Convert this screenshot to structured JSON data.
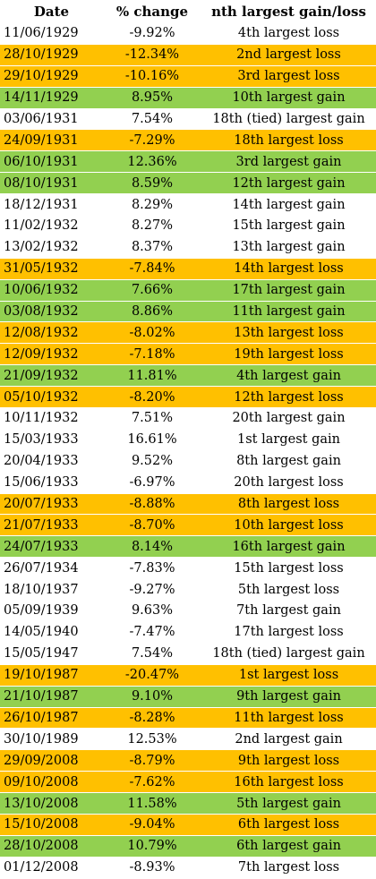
{
  "headers": {
    "date": "Date",
    "change": "% change",
    "rank": "nth largest gain/loss"
  },
  "colors": {
    "loss": "#ffc000",
    "gain": "#92d050",
    "none": "#ffffff"
  },
  "rows": [
    {
      "date": "11/06/1929",
      "change": "-9.92%",
      "rank": "4th largest loss",
      "hl": "none"
    },
    {
      "date": "28/10/1929",
      "change": "-12.34%",
      "rank": "2nd largest loss",
      "hl": "loss"
    },
    {
      "date": "29/10/1929",
      "change": "-10.16%",
      "rank": "3rd largest loss",
      "hl": "loss"
    },
    {
      "date": "14/11/1929",
      "change": "8.95%",
      "rank": "10th largest gain",
      "hl": "gain"
    },
    {
      "date": "03/06/1931",
      "change": "7.54%",
      "rank": "18th (tied) largest gain",
      "hl": "none"
    },
    {
      "date": "24/09/1931",
      "change": "-7.29%",
      "rank": "18th largest loss",
      "hl": "loss"
    },
    {
      "date": "06/10/1931",
      "change": "12.36%",
      "rank": "3rd largest gain",
      "hl": "gain"
    },
    {
      "date": "08/10/1931",
      "change": "8.59%",
      "rank": "12th largest gain",
      "hl": "gain"
    },
    {
      "date": "18/12/1931",
      "change": "8.29%",
      "rank": "14th largest gain",
      "hl": "none"
    },
    {
      "date": "11/02/1932",
      "change": "8.27%",
      "rank": "15th largest gain",
      "hl": "none"
    },
    {
      "date": "13/02/1932",
      "change": "8.37%",
      "rank": "13th largest gain",
      "hl": "none"
    },
    {
      "date": "31/05/1932",
      "change": "-7.84%",
      "rank": "14th largest loss",
      "hl": "loss"
    },
    {
      "date": "10/06/1932",
      "change": "7.66%",
      "rank": "17th largest gain",
      "hl": "gain"
    },
    {
      "date": "03/08/1932",
      "change": "8.86%",
      "rank": "11th largest gain",
      "hl": "gain"
    },
    {
      "date": "12/08/1932",
      "change": "-8.02%",
      "rank": "13th largest loss",
      "hl": "loss"
    },
    {
      "date": "12/09/1932",
      "change": "-7.18%",
      "rank": "19th largest loss",
      "hl": "loss"
    },
    {
      "date": "21/09/1932",
      "change": "11.81%",
      "rank": "4th largest gain",
      "hl": "gain"
    },
    {
      "date": "05/10/1932",
      "change": "-8.20%",
      "rank": "12th largest loss",
      "hl": "loss"
    },
    {
      "date": "10/11/1932",
      "change": "7.51%",
      "rank": "20th largest gain",
      "hl": "none"
    },
    {
      "date": "15/03/1933",
      "change": "16.61%",
      "rank": "1st largest gain",
      "hl": "none"
    },
    {
      "date": "20/04/1933",
      "change": "9.52%",
      "rank": "8th largest gain",
      "hl": "none"
    },
    {
      "date": "15/06/1933",
      "change": "-6.97%",
      "rank": "20th largest loss",
      "hl": "none"
    },
    {
      "date": "20/07/1933",
      "change": "-8.88%",
      "rank": "8th largest loss",
      "hl": "loss"
    },
    {
      "date": "21/07/1933",
      "change": "-8.70%",
      "rank": "10th largest loss",
      "hl": "loss"
    },
    {
      "date": "24/07/1933",
      "change": "8.14%",
      "rank": "16th largest gain",
      "hl": "gain"
    },
    {
      "date": "26/07/1934",
      "change": "-7.83%",
      "rank": "15th largest loss",
      "hl": "none"
    },
    {
      "date": "18/10/1937",
      "change": "-9.27%",
      "rank": "5th largest loss",
      "hl": "none"
    },
    {
      "date": "05/09/1939",
      "change": "9.63%",
      "rank": "7th largest gain",
      "hl": "none"
    },
    {
      "date": "14/05/1940",
      "change": "-7.47%",
      "rank": "17th largest loss",
      "hl": "none"
    },
    {
      "date": "15/05/1947",
      "change": "7.54%",
      "rank": "18th (tied) largest gain",
      "hl": "none"
    },
    {
      "date": "19/10/1987",
      "change": "-20.47%",
      "rank": "1st largest loss",
      "hl": "loss"
    },
    {
      "date": "21/10/1987",
      "change": "9.10%",
      "rank": "9th largest gain",
      "hl": "gain"
    },
    {
      "date": "26/10/1987",
      "change": "-8.28%",
      "rank": "11th largest loss",
      "hl": "loss"
    },
    {
      "date": "30/10/1989",
      "change": "12.53%",
      "rank": "2nd largest gain",
      "hl": "none"
    },
    {
      "date": "29/09/2008",
      "change": "-8.79%",
      "rank": "9th largest loss",
      "hl": "loss"
    },
    {
      "date": "09/10/2008",
      "change": "-7.62%",
      "rank": "16th largest loss",
      "hl": "loss"
    },
    {
      "date": "13/10/2008",
      "change": "11.58%",
      "rank": "5th largest gain",
      "hl": "gain"
    },
    {
      "date": "15/10/2008",
      "change": "-9.04%",
      "rank": "6th largest loss",
      "hl": "loss"
    },
    {
      "date": "28/10/2008",
      "change": "10.79%",
      "rank": "6th largest gain",
      "hl": "gain"
    },
    {
      "date": "01/12/2008",
      "change": "-8.93%",
      "rank": "7th largest loss",
      "hl": "none"
    }
  ]
}
